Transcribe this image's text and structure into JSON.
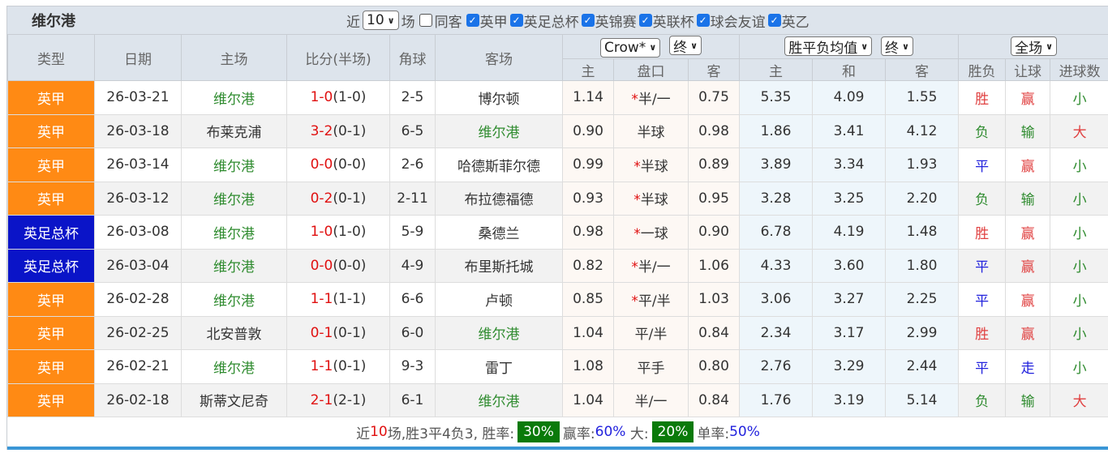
{
  "title": "维尔港",
  "filters": {
    "recent_label": "近",
    "count": "10",
    "unit": "场",
    "same_label": "同客",
    "same_checked": false,
    "leagues": [
      {
        "label": "英甲",
        "checked": true
      },
      {
        "label": "英足总杯",
        "checked": true
      },
      {
        "label": "英锦赛",
        "checked": true
      },
      {
        "label": "英联杯",
        "checked": true
      },
      {
        "label": "球会友谊",
        "checked": true
      },
      {
        "label": "英乙",
        "checked": true
      }
    ]
  },
  "headers": {
    "type": "类型",
    "date": "日期",
    "home": "主场",
    "score": "比分(半场)",
    "corner": "角球",
    "away": "客场",
    "ah_company": "Crow*",
    "ah_phase": "终",
    "eu_company": "胜平负均值",
    "eu_phase": "终",
    "scope": "全场",
    "ah_home": "主",
    "ah_line": "盘口",
    "ah_away": "客",
    "eu_home": "主",
    "eu_draw": "和",
    "eu_away": "客",
    "res": "胜负",
    "hc": "让球",
    "ou": "进球数"
  },
  "colors": {
    "英甲": "#ff8a14",
    "英足总杯": "#0a14c8",
    "team": "#2e8b2e"
  },
  "rows": [
    {
      "type": "英甲",
      "date": "26-03-21",
      "home": "维尔港",
      "ft": "1-0",
      "ht": "(1-0)",
      "corner": "2-5",
      "away": "博尔顿",
      "ah_h": "1.14",
      "star": true,
      "line": "半/一",
      "ah_a": "0.75",
      "eu_h": "5.35",
      "eu_d": "4.09",
      "eu_a": "1.55",
      "res": "胜",
      "hc": "赢",
      "ou": "小"
    },
    {
      "type": "英甲",
      "date": "26-03-18",
      "home": "布莱克浦",
      "ft": "3-2",
      "ht": "(0-1)",
      "corner": "6-5",
      "away": "维尔港",
      "ah_h": "0.90",
      "star": false,
      "line": "半球",
      "ah_a": "0.98",
      "eu_h": "1.86",
      "eu_d": "3.41",
      "eu_a": "4.12",
      "res": "负",
      "hc": "输",
      "ou": "大"
    },
    {
      "type": "英甲",
      "date": "26-03-14",
      "home": "维尔港",
      "ft": "0-0",
      "ht": "(0-0)",
      "corner": "2-6",
      "away": "哈德斯菲尔德",
      "ah_h": "0.99",
      "star": true,
      "line": "半球",
      "ah_a": "0.89",
      "eu_h": "3.89",
      "eu_d": "3.34",
      "eu_a": "1.93",
      "res": "平",
      "hc": "赢",
      "ou": "小"
    },
    {
      "type": "英甲",
      "date": "26-03-12",
      "home": "维尔港",
      "ft": "0-2",
      "ht": "(0-1)",
      "corner": "2-11",
      "away": "布拉德福德",
      "ah_h": "0.93",
      "star": true,
      "line": "半球",
      "ah_a": "0.95",
      "eu_h": "3.28",
      "eu_d": "3.25",
      "eu_a": "2.20",
      "res": "负",
      "hc": "输",
      "ou": "小"
    },
    {
      "type": "英足总杯",
      "date": "26-03-08",
      "home": "维尔港",
      "ft": "1-0",
      "ht": "(1-0)",
      "corner": "5-9",
      "away": "桑德兰",
      "ah_h": "0.98",
      "star": true,
      "line": "一球",
      "ah_a": "0.90",
      "eu_h": "6.78",
      "eu_d": "4.19",
      "eu_a": "1.48",
      "res": "胜",
      "hc": "赢",
      "ou": "小"
    },
    {
      "type": "英足总杯",
      "date": "26-03-04",
      "home": "维尔港",
      "ft": "0-0",
      "ht": "(0-0)",
      "corner": "4-9",
      "away": "布里斯托城",
      "ah_h": "0.82",
      "star": true,
      "line": "半/一",
      "ah_a": "1.06",
      "eu_h": "4.33",
      "eu_d": "3.60",
      "eu_a": "1.80",
      "res": "平",
      "hc": "赢",
      "ou": "小"
    },
    {
      "type": "英甲",
      "date": "26-02-28",
      "home": "维尔港",
      "ft": "1-1",
      "ht": "(1-1)",
      "corner": "6-6",
      "away": "卢顿",
      "ah_h": "0.85",
      "star": true,
      "line": "平/半",
      "ah_a": "1.03",
      "eu_h": "3.06",
      "eu_d": "3.27",
      "eu_a": "2.25",
      "res": "平",
      "hc": "赢",
      "ou": "小"
    },
    {
      "type": "英甲",
      "date": "26-02-25",
      "home": "北安普敦",
      "ft": "0-1",
      "ht": "(0-1)",
      "corner": "6-0",
      "away": "维尔港",
      "ah_h": "1.04",
      "star": false,
      "line": "平/半",
      "ah_a": "0.84",
      "eu_h": "2.34",
      "eu_d": "3.17",
      "eu_a": "2.99",
      "res": "胜",
      "hc": "赢",
      "ou": "小"
    },
    {
      "type": "英甲",
      "date": "26-02-21",
      "home": "维尔港",
      "ft": "1-1",
      "ht": "(0-1)",
      "corner": "9-3",
      "away": "雷丁",
      "ah_h": "1.08",
      "star": false,
      "line": "平手",
      "ah_a": "0.80",
      "eu_h": "2.76",
      "eu_d": "3.29",
      "eu_a": "2.44",
      "res": "平",
      "hc": "走",
      "ou": "小"
    },
    {
      "type": "英甲",
      "date": "26-02-18",
      "home": "斯蒂文尼奇",
      "ft": "2-1",
      "ht": "(2-1)",
      "corner": "6-1",
      "away": "维尔港",
      "ah_h": "1.04",
      "star": false,
      "line": "半/一",
      "ah_a": "0.84",
      "eu_h": "1.76",
      "eu_d": "3.19",
      "eu_a": "5.14",
      "res": "负",
      "hc": "输",
      "ou": "大"
    }
  ],
  "summary": {
    "p1": "近",
    "n": "10",
    "p2": "场,胜3平4负3, 胜率:",
    "win_rate": "30%",
    "p3": "赢率:",
    "hc_rate": "60%",
    "p4": "大:",
    "big_rate": "20%",
    "p5": "单率:",
    "odd_rate": "50%"
  }
}
